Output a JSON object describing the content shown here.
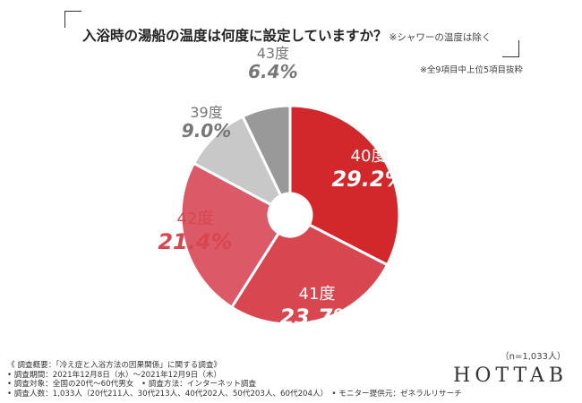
{
  "header": {
    "title": "入浴時の湯船の温度は何度に設定していますか？",
    "title_note": "※シャワーの温度は除く",
    "subnote": "※全9項目中上位5項目抜粋"
  },
  "chart_data": {
    "type": "pie",
    "donut": true,
    "categories": [
      "40度",
      "41度",
      "42度",
      "39度",
      "43度"
    ],
    "values": [
      29.2,
      23.7,
      21.4,
      9.0,
      6.4
    ],
    "value_labels": [
      "29.2%",
      "23.7%",
      "21.4%",
      "9.0%",
      "6.4%"
    ],
    "colors": [
      "#d2282c",
      "#d84650",
      "#dc5a68",
      "#c8c8c8",
      "#999999"
    ],
    "start": "12 o'clock, clockwise"
  },
  "sample_size": "（n=1,033人）",
  "footer": {
    "lines": [
      "《 調査概要：「冷え症と入浴方法の因果関係」に関する調査》",
      "• 調査期間：2021年12月8日（水）～2021年12月9日（木）",
      "• 調査対象：全国の20代～60代男女　• 調査方法：インターネット調査",
      "• 調査人数：1,033人（20代211人、30代213人、40代202人、50代203人、60代204人）　• モニター提供元：ゼネラルリサーチ"
    ]
  },
  "logo": "HOTTAB"
}
